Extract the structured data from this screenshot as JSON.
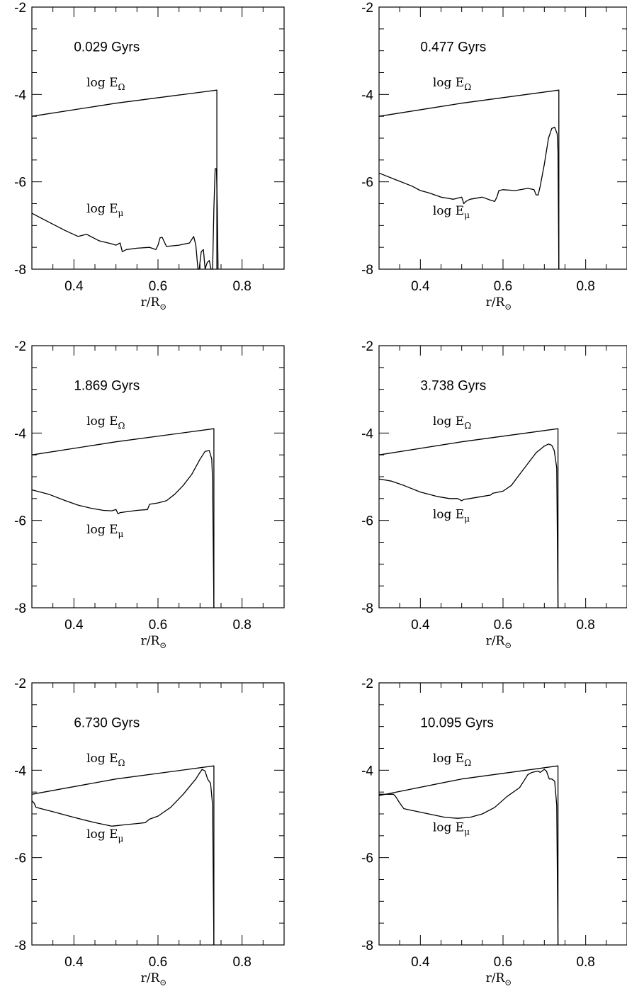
{
  "chart_data": [
    {
      "type": "line",
      "annotation": "0.029 Gyrs",
      "xlabel_main": "r/R",
      "xlabel_sub": "⊙",
      "xlim": [
        0.3,
        0.9
      ],
      "ylim": [
        -8,
        -2
      ],
      "xticks": [
        "0.4",
        "0.6",
        "0.8"
      ],
      "yticks": [
        "-2",
        "-4",
        "-6",
        "-8"
      ],
      "series": [
        {
          "name": "log EΩ",
          "label_main": "log E",
          "label_sub": "Ω",
          "x": [
            0.3,
            0.5,
            0.74,
            0.74
          ],
          "y": [
            -4.5,
            -4.2,
            -3.9,
            -8
          ]
        },
        {
          "name": "log Eμ",
          "label_main": "log E",
          "label_sub": "μ",
          "x": [
            0.3,
            0.34,
            0.38,
            0.41,
            0.43,
            0.46,
            0.49,
            0.5,
            0.51,
            0.515,
            0.525,
            0.55,
            0.58,
            0.595,
            0.6,
            0.605,
            0.61,
            0.62,
            0.65,
            0.675,
            0.685,
            0.69,
            0.695,
            0.698,
            0.703,
            0.708,
            0.712,
            0.717,
            0.722,
            0.726,
            0.73,
            0.733,
            0.736,
            0.739,
            0.741,
            0.743
          ],
          "y": [
            -6.72,
            -6.92,
            -7.12,
            -7.25,
            -7.2,
            -7.35,
            -7.42,
            -7.45,
            -7.4,
            -7.6,
            -7.55,
            -7.52,
            -7.5,
            -7.55,
            -7.45,
            -7.28,
            -7.27,
            -7.48,
            -7.45,
            -7.4,
            -7.25,
            -7.45,
            -8.0,
            -8.0,
            -7.6,
            -7.55,
            -8.0,
            -7.85,
            -7.8,
            -8.0,
            -8.0,
            -6.6,
            -5.7,
            -5.7,
            -6.6,
            -8.0
          ]
        }
      ]
    },
    {
      "type": "line",
      "annotation": "0.477 Gyrs",
      "xlabel_main": "r/R",
      "xlabel_sub": "⊙",
      "xlim": [
        0.3,
        0.9
      ],
      "ylim": [
        -8,
        -2
      ],
      "xticks": [
        "0.4",
        "0.6",
        "0.8"
      ],
      "yticks": [
        "-2",
        "-4",
        "-6",
        "-8"
      ],
      "series": [
        {
          "name": "log EΩ",
          "label_main": "log E",
          "label_sub": "Ω",
          "x": [
            0.3,
            0.5,
            0.735,
            0.735
          ],
          "y": [
            -4.5,
            -4.2,
            -3.9,
            -8
          ]
        },
        {
          "name": "log Eμ",
          "label_main": "log E",
          "label_sub": "μ",
          "x": [
            0.3,
            0.34,
            0.38,
            0.4,
            0.42,
            0.45,
            0.48,
            0.5,
            0.505,
            0.51,
            0.52,
            0.55,
            0.57,
            0.58,
            0.585,
            0.59,
            0.6,
            0.63,
            0.66,
            0.675,
            0.68,
            0.685,
            0.69,
            0.7,
            0.71,
            0.718,
            0.725,
            0.731,
            0.733,
            0.735
          ],
          "y": [
            -5.8,
            -5.95,
            -6.1,
            -6.2,
            -6.25,
            -6.35,
            -6.4,
            -6.35,
            -6.5,
            -6.45,
            -6.4,
            -6.35,
            -6.42,
            -6.45,
            -6.35,
            -6.2,
            -6.18,
            -6.2,
            -6.15,
            -6.18,
            -6.3,
            -6.3,
            -6.1,
            -5.6,
            -5.0,
            -4.78,
            -4.75,
            -4.9,
            -5.3,
            -8.0
          ]
        }
      ]
    },
    {
      "type": "line",
      "annotation": "1.869 Gyrs",
      "xlabel_main": "r/R",
      "xlabel_sub": "⊙",
      "xlim": [
        0.3,
        0.9
      ],
      "ylim": [
        -8,
        -2
      ],
      "xticks": [
        "0.4",
        "0.6",
        "0.8"
      ],
      "yticks": [
        "-2",
        "-4",
        "-6",
        "-8"
      ],
      "series": [
        {
          "name": "log EΩ",
          "label_main": "log E",
          "label_sub": "Ω",
          "x": [
            0.3,
            0.5,
            0.733,
            0.733
          ],
          "y": [
            -4.5,
            -4.2,
            -3.9,
            -8
          ]
        },
        {
          "name": "log Eμ",
          "label_main": "log E",
          "label_sub": "μ",
          "x": [
            0.3,
            0.34,
            0.38,
            0.41,
            0.44,
            0.47,
            0.49,
            0.5,
            0.505,
            0.51,
            0.55,
            0.575,
            0.58,
            0.6,
            0.62,
            0.64,
            0.66,
            0.68,
            0.7,
            0.712,
            0.722,
            0.728,
            0.73,
            0.733
          ],
          "y": [
            -5.3,
            -5.4,
            -5.55,
            -5.65,
            -5.72,
            -5.77,
            -5.78,
            -5.75,
            -5.85,
            -5.82,
            -5.77,
            -5.75,
            -5.63,
            -5.6,
            -5.55,
            -5.4,
            -5.2,
            -4.95,
            -4.6,
            -4.42,
            -4.4,
            -4.6,
            -5.1,
            -8.0
          ]
        }
      ]
    },
    {
      "type": "line",
      "annotation": "3.738 Gyrs",
      "xlabel_main": "r/R",
      "xlabel_sub": "⊙",
      "xlim": [
        0.3,
        0.9
      ],
      "ylim": [
        -8,
        -2
      ],
      "xticks": [
        "0.4",
        "0.6",
        "0.8"
      ],
      "yticks": [
        "-2",
        "-4",
        "-6",
        "-8"
      ],
      "series": [
        {
          "name": "log EΩ",
          "label_main": "log E",
          "label_sub": "Ω",
          "x": [
            0.3,
            0.5,
            0.733,
            0.733
          ],
          "y": [
            -4.5,
            -4.2,
            -3.9,
            -8
          ]
        },
        {
          "name": "log Eμ",
          "label_main": "log E",
          "label_sub": "μ",
          "x": [
            0.3,
            0.33,
            0.36,
            0.4,
            0.44,
            0.47,
            0.49,
            0.5,
            0.505,
            0.52,
            0.55,
            0.57,
            0.575,
            0.6,
            0.62,
            0.64,
            0.66,
            0.68,
            0.7,
            0.71,
            0.718,
            0.724,
            0.73,
            0.733
          ],
          "y": [
            -5.05,
            -5.1,
            -5.2,
            -5.35,
            -5.45,
            -5.5,
            -5.5,
            -5.55,
            -5.52,
            -5.5,
            -5.45,
            -5.42,
            -5.38,
            -5.33,
            -5.2,
            -4.95,
            -4.7,
            -4.45,
            -4.3,
            -4.25,
            -4.28,
            -4.4,
            -4.8,
            -8.0
          ]
        }
      ]
    },
    {
      "type": "line",
      "annotation": "6.730 Gyrs",
      "xlabel_main": "r/R",
      "xlabel_sub": "⊙",
      "xlim": [
        0.3,
        0.9
      ],
      "ylim": [
        -8,
        -2
      ],
      "xticks": [
        "0.4",
        "0.6",
        "0.8"
      ],
      "yticks": [
        "-2",
        "-4",
        "-6",
        "-8"
      ],
      "series": [
        {
          "name": "log EΩ",
          "label_main": "log E",
          "label_sub": "Ω",
          "x": [
            0.3,
            0.5,
            0.733,
            0.733
          ],
          "y": [
            -4.55,
            -4.2,
            -3.9,
            -8
          ]
        },
        {
          "name": "log Eμ",
          "label_main": "log E",
          "label_sub": "μ",
          "x": [
            0.3,
            0.305,
            0.31,
            0.35,
            0.4,
            0.45,
            0.49,
            0.5,
            0.52,
            0.55,
            0.57,
            0.58,
            0.6,
            0.63,
            0.66,
            0.69,
            0.7,
            0.705,
            0.712,
            0.718,
            0.725,
            0.73,
            0.733
          ],
          "y": [
            -4.7,
            -4.75,
            -4.85,
            -4.95,
            -5.08,
            -5.2,
            -5.28,
            -5.27,
            -5.25,
            -5.22,
            -5.2,
            -5.12,
            -5.05,
            -4.85,
            -4.55,
            -4.2,
            -4.05,
            -3.98,
            -4.02,
            -4.2,
            -4.3,
            -4.8,
            -8.0
          ]
        }
      ]
    },
    {
      "type": "line",
      "annotation": "10.095 Gyrs",
      "xlabel_main": "r/R",
      "xlabel_sub": "⊙",
      "xlim": [
        0.3,
        0.9
      ],
      "ylim": [
        -8,
        -2
      ],
      "xticks": [
        "0.4",
        "0.6",
        "0.8"
      ],
      "yticks": [
        "-2",
        "-4",
        "-6",
        "-8"
      ],
      "series": [
        {
          "name": "log EΩ",
          "label_main": "log E",
          "label_sub": "Ω",
          "x": [
            0.3,
            0.5,
            0.733,
            0.733
          ],
          "y": [
            -4.58,
            -4.2,
            -3.9,
            -8
          ]
        },
        {
          "name": "log Eμ",
          "label_main": "log E",
          "label_sub": "μ",
          "x": [
            0.3,
            0.32,
            0.335,
            0.34,
            0.35,
            0.36,
            0.38,
            0.42,
            0.46,
            0.49,
            0.52,
            0.55,
            0.58,
            0.61,
            0.64,
            0.65,
            0.66,
            0.67,
            0.685,
            0.69,
            0.7,
            0.705,
            0.712,
            0.718,
            0.725,
            0.73,
            0.733
          ],
          "y": [
            -4.55,
            -4.55,
            -4.55,
            -4.6,
            -4.75,
            -4.88,
            -4.92,
            -5.0,
            -5.08,
            -5.1,
            -5.08,
            -5.0,
            -4.85,
            -4.6,
            -4.4,
            -4.25,
            -4.1,
            -4.05,
            -4.02,
            -4.05,
            -3.98,
            -4.02,
            -4.2,
            -4.2,
            -4.25,
            -4.8,
            -8.0
          ]
        }
      ]
    }
  ]
}
